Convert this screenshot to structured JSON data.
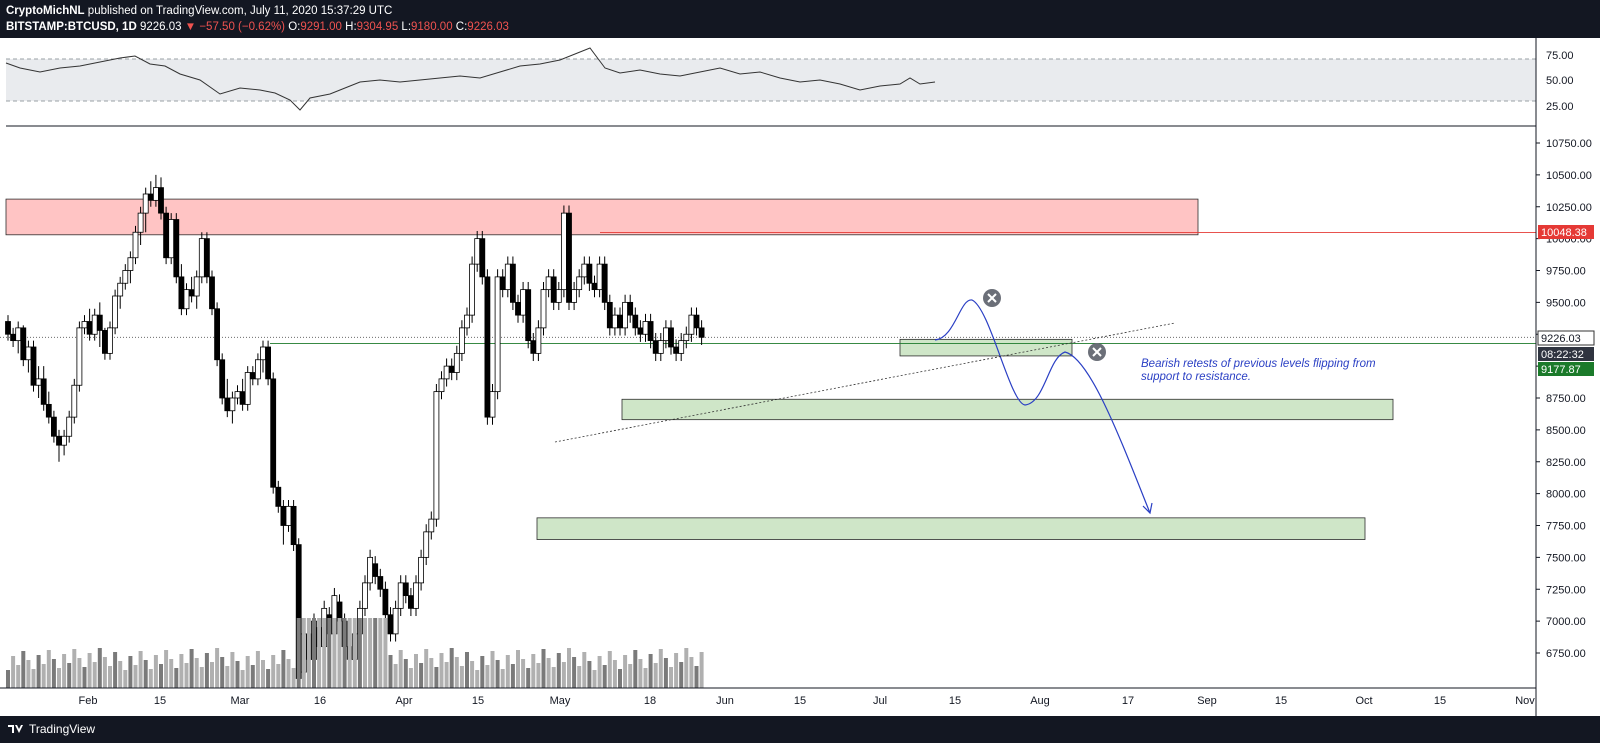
{
  "header": {
    "author": "CryptoMichNL",
    "published_text": "published on TradingView.com, July 11, 2020 15:37:29 UTC",
    "symbol": "BITSTAMP:BTCUSD, 1D",
    "last": "9226.03",
    "change": "−57.50 (−0.62%)",
    "o_label": "O:",
    "o_value": "9291.00",
    "h_label": "H:",
    "h_value": "9304.95",
    "l_label": "L:",
    "l_value": "9180.00",
    "c_label": "C:",
    "c_value": "9226.03"
  },
  "footer": {
    "brand": "TradingView"
  },
  "annotation": "Bearish retests of previous levels flipping from support to resistance.",
  "price_tags": {
    "resistance": "10048.38",
    "last": "9226.03",
    "countdown": "08:22:32",
    "support": "9177.87"
  },
  "colors": {
    "up": "#ffffff",
    "down": "#000000",
    "resistance_zone": "#ffc4c4",
    "support_zone": "#cfe6c8",
    "projection": "#2a3fc4",
    "header_bg": "#131722"
  },
  "chart_data": {
    "type": "candlestick",
    "symbol": "BITSTAMP:BTCUSD",
    "timeframe": "1D",
    "x_tick_labels": [
      "Feb",
      "15",
      "Mar",
      "16",
      "Apr",
      "15",
      "May",
      "18",
      "Jun",
      "15",
      "Jul",
      "15",
      "Aug",
      "17",
      "Sep",
      "15",
      "Oct",
      "15",
      "Nov"
    ],
    "y_tick_labels": [
      "10750.00",
      "10500.00",
      "10250.00",
      "10000.00",
      "9750.00",
      "9500.00",
      "9250.00",
      "9000.00",
      "8750.00",
      "8500.00",
      "8250.00",
      "8000.00",
      "7750.00",
      "7500.00",
      "7250.00",
      "7000.00",
      "6750.00"
    ],
    "ylim": [
      6550,
      10950
    ],
    "rsi_tick_labels": [
      "75.00",
      "50.00",
      "25.00"
    ],
    "rsi_range": [
      30,
      70
    ],
    "ohlc": [
      [
        9350,
        9400,
        9200,
        9250
      ],
      [
        9250,
        9300,
        9150,
        9200
      ],
      [
        9200,
        9350,
        9100,
        9300
      ],
      [
        9300,
        9320,
        9000,
        9050
      ],
      [
        9050,
        9200,
        8950,
        9150
      ],
      [
        9150,
        9200,
        8800,
        8850
      ],
      [
        8850,
        9000,
        8750,
        8900
      ],
      [
        8900,
        9000,
        8650,
        8700
      ],
      [
        8700,
        8800,
        8550,
        8600
      ],
      [
        8600,
        8650,
        8400,
        8450
      ],
      [
        8450,
        8500,
        8250,
        8380
      ],
      [
        8380,
        8500,
        8300,
        8450
      ],
      [
        8450,
        8650,
        8400,
        8600
      ],
      [
        8600,
        8900,
        8550,
        8850
      ],
      [
        8850,
        9350,
        8800,
        9300
      ],
      [
        9300,
        9400,
        9250,
        9350
      ],
      [
        9350,
        9450,
        9200,
        9250
      ],
      [
        9250,
        9450,
        9200,
        9400
      ],
      [
        9400,
        9500,
        9150,
        9280
      ],
      [
        9280,
        9300,
        9050,
        9100
      ],
      [
        9100,
        9350,
        9050,
        9300
      ],
      [
        9300,
        9600,
        9250,
        9550
      ],
      [
        9550,
        9700,
        9450,
        9650
      ],
      [
        9650,
        9800,
        9600,
        9750
      ],
      [
        9750,
        9900,
        9650,
        9850
      ],
      [
        9850,
        10100,
        9800,
        10050
      ],
      [
        10050,
        10250,
        9950,
        10200
      ],
      [
        10200,
        10400,
        10050,
        10350
      ],
      [
        10350,
        10450,
        10250,
        10300
      ],
      [
        10300,
        10500,
        10250,
        10400
      ],
      [
        10400,
        10480,
        10150,
        10200
      ],
      [
        10200,
        10250,
        9800,
        9850
      ],
      [
        9850,
        10200,
        9800,
        10150
      ],
      [
        10150,
        10200,
        9650,
        9700
      ],
      [
        9700,
        9800,
        9400,
        9450
      ],
      [
        9450,
        9650,
        9400,
        9600
      ],
      [
        9600,
        9700,
        9500,
        9550
      ],
      [
        9550,
        9750,
        9450,
        9700
      ],
      [
        9700,
        10050,
        9650,
        10000
      ],
      [
        10000,
        10050,
        9650,
        9700
      ],
      [
        9700,
        9750,
        9400,
        9450
      ],
      [
        9450,
        9500,
        9000,
        9050
      ],
      [
        9050,
        9100,
        8700,
        8750
      ],
      [
        8750,
        8900,
        8600,
        8650
      ],
      [
        8650,
        8800,
        8550,
        8750
      ],
      [
        8750,
        8850,
        8700,
        8800
      ],
      [
        8800,
        8900,
        8650,
        8700
      ],
      [
        8700,
        9000,
        8650,
        8950
      ],
      [
        8950,
        9000,
        8850,
        8900
      ],
      [
        8900,
        9100,
        8850,
        9050
      ],
      [
        9050,
        9200,
        8950,
        9150
      ],
      [
        9150,
        9200,
        8850,
        8900
      ],
      [
        8900,
        8950,
        8000,
        8050
      ],
      [
        8050,
        8100,
        7850,
        7900
      ],
      [
        7900,
        7950,
        7600,
        7750
      ],
      [
        7750,
        7950,
        7700,
        7900
      ],
      [
        7900,
        7950,
        7550,
        7600
      ],
      [
        7600,
        7650,
        6500,
        6550
      ]
    ],
    "zones": [
      {
        "label": "resistance",
        "low": 10030,
        "high": 10310
      },
      {
        "label": "support-retest",
        "low": 9080,
        "high": 9210
      },
      {
        "label": "support-mid",
        "low": 8580,
        "high": 8740
      },
      {
        "label": "support-low",
        "low": 7640,
        "high": 7810
      }
    ],
    "horizontal_lines": [
      10048.38,
      9226.03,
      9177.87
    ]
  }
}
